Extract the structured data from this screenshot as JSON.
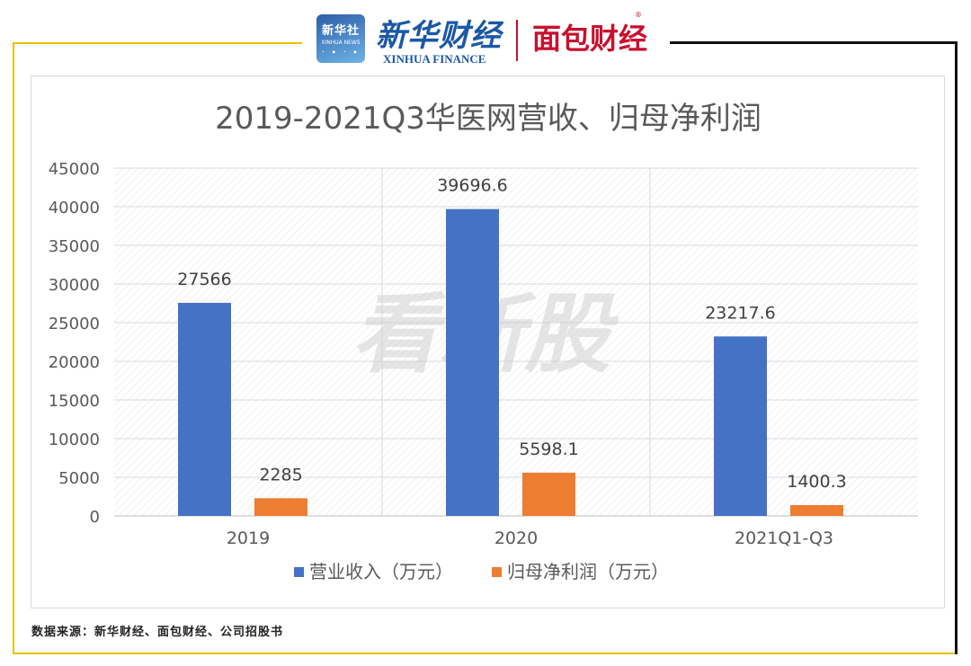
{
  "header": {
    "logo_text": "新华社",
    "logo_sub": "XINHUA NEWS",
    "brand_cn": "新华财经",
    "brand_en": "XINHUA FINANCE",
    "brand2": "面包财经",
    "brand2_mark": "®",
    "watermark": "看新股"
  },
  "colors": {
    "revenue": "#4472c4",
    "profit": "#ed7d31",
    "frame_yellow": "#e8c100",
    "frame_black": "#111111"
  },
  "chart_data": {
    "type": "bar",
    "title": "2019-2021Q3华医网营收、归母净利润",
    "categories": [
      "2019",
      "2020",
      "2021Q1-Q3"
    ],
    "series": [
      {
        "name": "营业收入（万元）",
        "values": [
          27566,
          39696.6,
          23217.6
        ],
        "labels": [
          "27566",
          "39696.6",
          "23217.6"
        ]
      },
      {
        "name": "归母净利润（万元）",
        "values": [
          2285,
          5598.1,
          1400.3
        ],
        "labels": [
          "2285",
          "5598.1",
          "1400.3"
        ]
      }
    ],
    "ylim": [
      0,
      45000
    ],
    "yticks": [
      "0",
      "5000",
      "10000",
      "15000",
      "20000",
      "25000",
      "30000",
      "35000",
      "40000",
      "45000"
    ],
    "grid": true,
    "legend": "bottom"
  },
  "footer": {
    "source": "数据来源：新华财经、面包财经、公司招股书"
  }
}
